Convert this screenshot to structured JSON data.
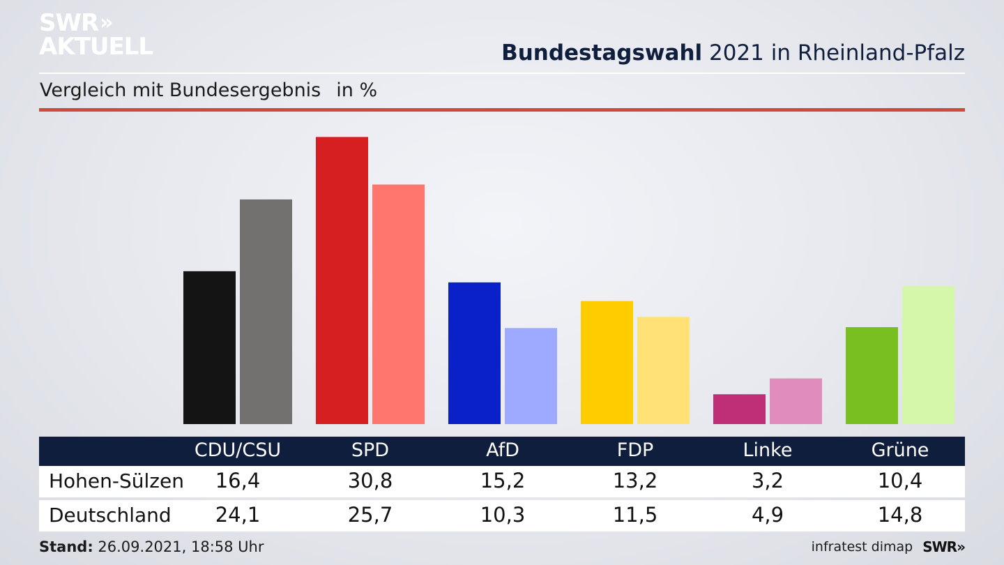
{
  "logo": {
    "line1": "SWR",
    "line2": "AKTUELL",
    "chevrons": "»"
  },
  "header": {
    "title_bold": "Bundestagswahl",
    "title_rest": " 2021 in Rheinland-Pfalz",
    "subtitle": "Vergleich mit Bundesergebnis",
    "unit": "in %"
  },
  "chart_data": {
    "type": "bar",
    "categories": [
      "CDU/CSU",
      "SPD",
      "AfD",
      "FDP",
      "Linke",
      "Grüne"
    ],
    "series": [
      {
        "name": "Hohen-Sülzen",
        "values": [
          16.4,
          30.8,
          15.2,
          13.2,
          3.2,
          10.4
        ],
        "value_labels": [
          "16,4",
          "30,8",
          "15,2",
          "13,2",
          "3,2",
          "10,4"
        ]
      },
      {
        "name": "Deutschland",
        "values": [
          24.1,
          25.7,
          10.3,
          11.5,
          4.9,
          14.8
        ],
        "value_labels": [
          "24,1",
          "25,7",
          "10,3",
          "11,5",
          "4,9",
          "14,8"
        ]
      }
    ],
    "colors": {
      "primary": [
        "#141414",
        "#d61f21",
        "#0a20c8",
        "#ffcc00",
        "#be2f78",
        "#79bf1f"
      ],
      "secondary": [
        "#73716f",
        "#ff766f",
        "#9eaaff",
        "#ffe176",
        "#e08cbc",
        "#d4f7a9"
      ]
    },
    "ylim": [
      0,
      31.5
    ],
    "grid": false,
    "title": "",
    "xlabel": "",
    "ylabel": ""
  },
  "footer": {
    "stand_label": "Stand:",
    "stand_value": " 26.09.2021, 18:58 Uhr",
    "source": "infratest dimap",
    "brand": "SWR»"
  }
}
